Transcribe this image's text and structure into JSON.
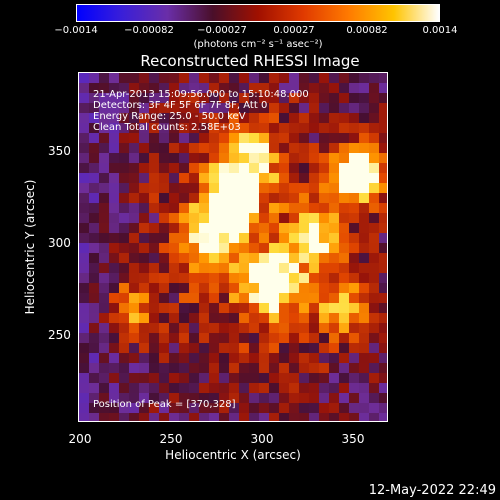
{
  "colorbar": {
    "tick_labels": [
      "−0.0014",
      "−0.00082",
      "−0.00027",
      "0.00027",
      "0.00082",
      "0.0014"
    ],
    "units": "(photons cm⁻² s⁻¹ asec⁻²)",
    "colors": [
      "#0000ff",
      "#3a1fd8",
      "#6a2ea8",
      "#4a0f2a",
      "#a01000",
      "#e03a00",
      "#ff7a00",
      "#ffc400",
      "#ffffff"
    ]
  },
  "title": "Reconstructed RHESSI Image",
  "info": {
    "time_range": "21-Apr-2013 15:09:56.000 to 15:10:48.000",
    "detectors": "Detectors: 3F 4F 5F 6F 7F 8F, Att 0",
    "energy_range": "Energy Range: 25.0 - 50.0 keV",
    "method_counts": "Clean    Total counts: 2.58E+03",
    "peak": "Position of Peak = [370,328]"
  },
  "axes": {
    "xlabel": "Heliocentric X (arcsec)",
    "ylabel": "Heliocentric Y (arcsec)",
    "xticks": [
      "200",
      "250",
      "300",
      "350"
    ],
    "yticks": [
      "350",
      "300",
      "250"
    ],
    "xlim": [
      198,
      388
    ],
    "ylim": [
      196,
      382
    ]
  },
  "image_data": {
    "type": "heatmap",
    "bright_sources": [
      {
        "x": 370,
        "y": 328,
        "level": 1.0
      },
      {
        "x": 292,
        "y": 318,
        "level": 0.95
      },
      {
        "x": 318,
        "y": 271,
        "level": 0.95
      },
      {
        "x": 280,
        "y": 296,
        "level": 0.7
      },
      {
        "x": 343,
        "y": 296,
        "level": 0.6
      },
      {
        "x": 305,
        "y": 340,
        "level": 0.55
      },
      {
        "x": 229,
        "y": 255,
        "level": 0.45
      },
      {
        "x": 361,
        "y": 258,
        "level": 0.5
      }
    ]
  },
  "timestamp": "12-May-2022 22:49"
}
